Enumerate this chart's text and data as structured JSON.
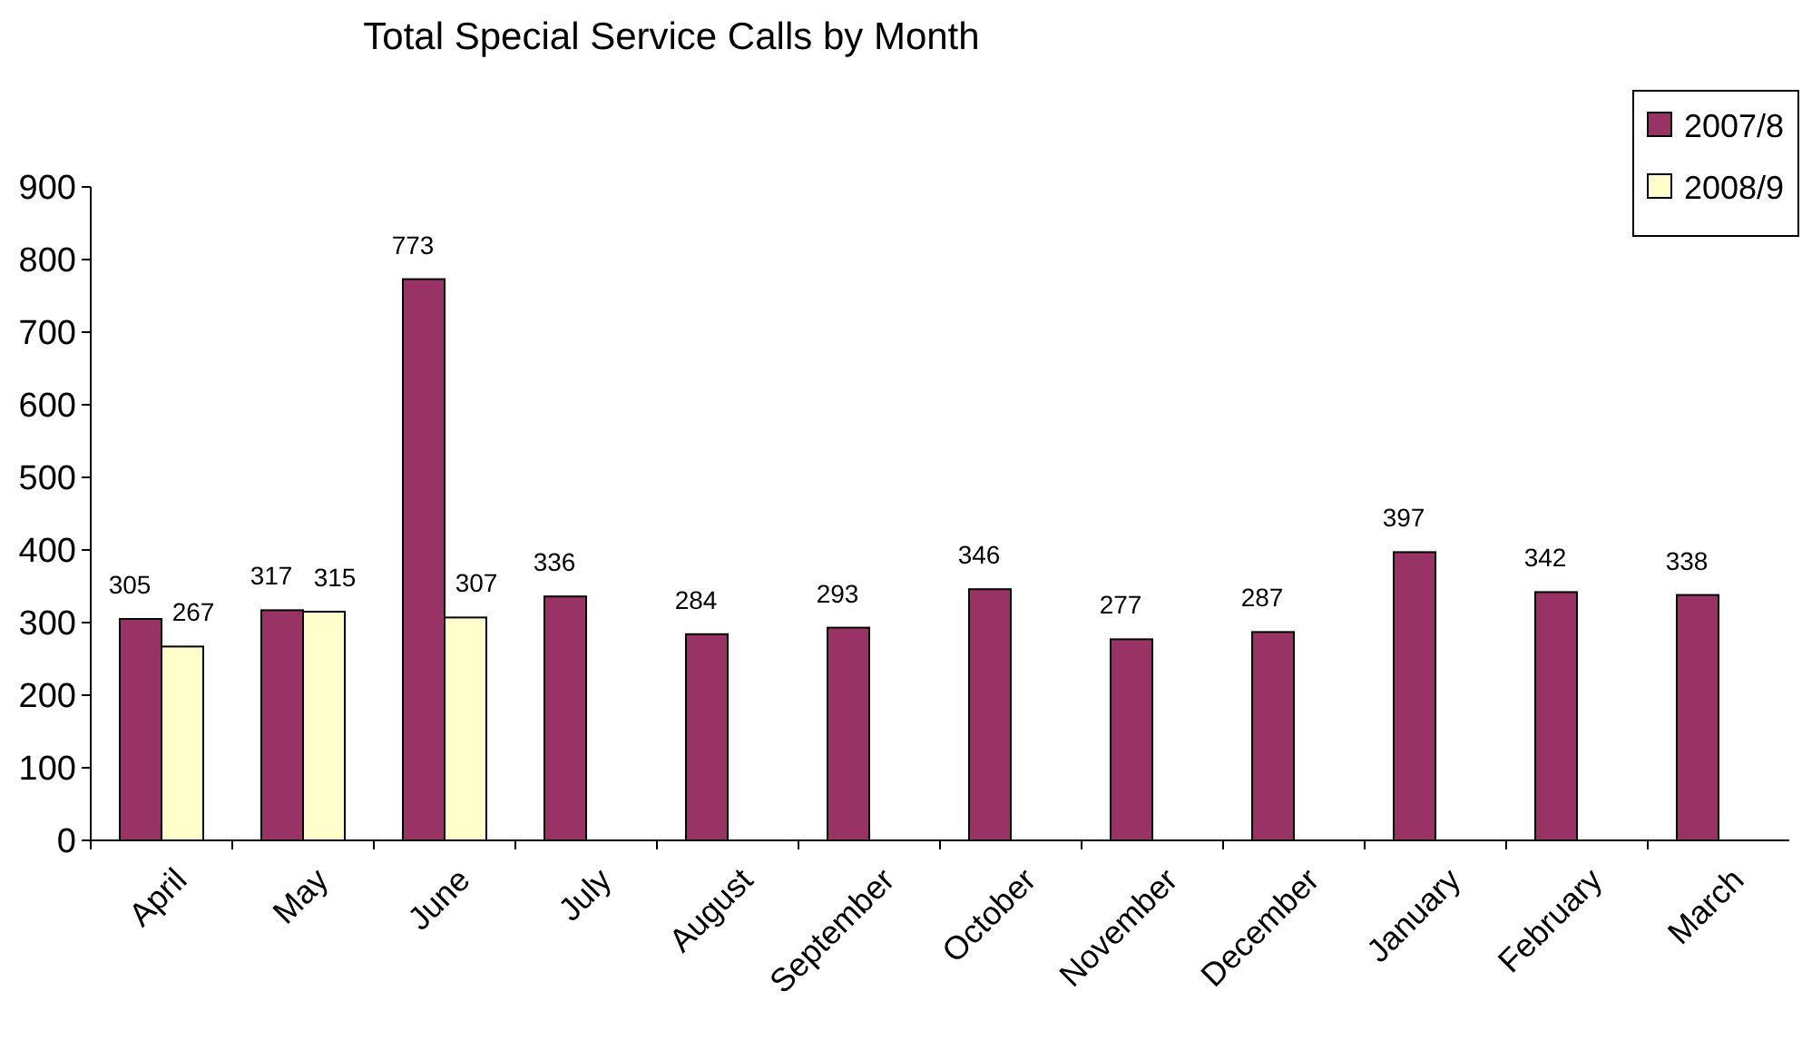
{
  "chart_data": {
    "type": "bar",
    "title": "Total Special Service Calls by Month",
    "categories": [
      "April",
      "May",
      "June",
      "July",
      "August",
      "September",
      "October",
      "November",
      "December",
      "January",
      "February",
      "March"
    ],
    "series": [
      {
        "name": "2007/8",
        "color": "#993366",
        "values": [
          305,
          317,
          773,
          336,
          284,
          293,
          346,
          277,
          287,
          397,
          342,
          338
        ]
      },
      {
        "name": "2008/9",
        "color": "#ffffcc",
        "values": [
          267,
          315,
          307,
          null,
          null,
          null,
          null,
          null,
          null,
          null,
          null,
          null
        ]
      }
    ],
    "ylim": [
      0,
      900
    ],
    "yticks": [
      0,
      100,
      200,
      300,
      400,
      500,
      600,
      700,
      800,
      900
    ],
    "data_labels": true,
    "grid": false,
    "legend": "top right"
  }
}
